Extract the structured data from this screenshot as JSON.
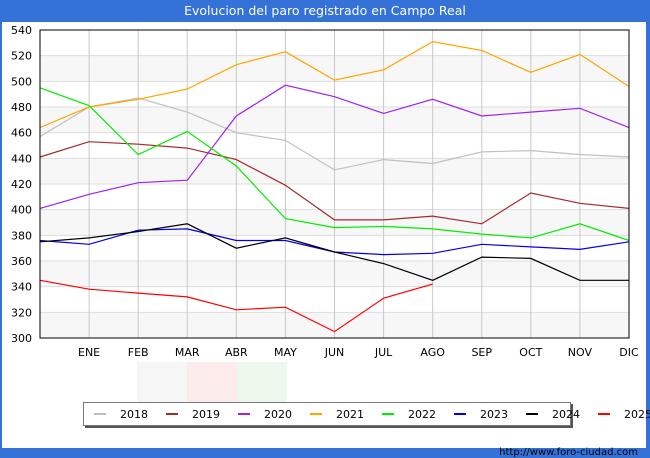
{
  "chart_data": {
    "type": "line",
    "title": "Evolucion del paro registrado en Campo Real",
    "xlabel": "",
    "ylabel": "",
    "categories": [
      "",
      "ENE",
      "FEB",
      "MAR",
      "ABR",
      "MAY",
      "JUN",
      "JUL",
      "AGO",
      "SEP",
      "OCT",
      "NOV",
      "DIC"
    ],
    "ylim": [
      300,
      540
    ],
    "yticks": [
      300,
      320,
      340,
      360,
      380,
      400,
      420,
      440,
      460,
      480,
      500,
      520,
      540
    ],
    "grid": true,
    "legend_position": "bottom",
    "series": [
      {
        "name": "2018",
        "color": "#c0c0c0",
        "values": [
          457,
          480,
          487,
          476,
          460,
          454,
          431,
          439,
          436,
          445,
          446,
          443,
          441
        ]
      },
      {
        "name": "2019",
        "color": "#a52a2a",
        "values": [
          441,
          453,
          451,
          448,
          439,
          419,
          392,
          392,
          395,
          389,
          413,
          405,
          401
        ]
      },
      {
        "name": "2020",
        "color": "#a020f0",
        "values": [
          401,
          412,
          421,
          423,
          473,
          497,
          488,
          475,
          486,
          473,
          476,
          479,
          464
        ]
      },
      {
        "name": "2021",
        "color": "#ffa500",
        "values": [
          464,
          480,
          486,
          494,
          513,
          523,
          501,
          509,
          531,
          524,
          507,
          521,
          496
        ]
      },
      {
        "name": "2022",
        "color": "#00ee00",
        "values": [
          495,
          481,
          443,
          461,
          434,
          393,
          386,
          387,
          385,
          381,
          378,
          389,
          376
        ]
      },
      {
        "name": "2023",
        "color": "#0000ee",
        "values": [
          376,
          373,
          384,
          385,
          376,
          376,
          367,
          365,
          366,
          373,
          371,
          369,
          375
        ]
      },
      {
        "name": "2024",
        "color": "#000000",
        "values": [
          375,
          378,
          383,
          389,
          370,
          378,
          367,
          358,
          345,
          363,
          362,
          345,
          345
        ]
      },
      {
        "name": "2025",
        "color": "#ff0000",
        "values": [
          345,
          338,
          335,
          332,
          322,
          324,
          305,
          331,
          342
        ]
      }
    ]
  },
  "footer": {
    "credit": "http://www.foro-ciudad.com"
  }
}
